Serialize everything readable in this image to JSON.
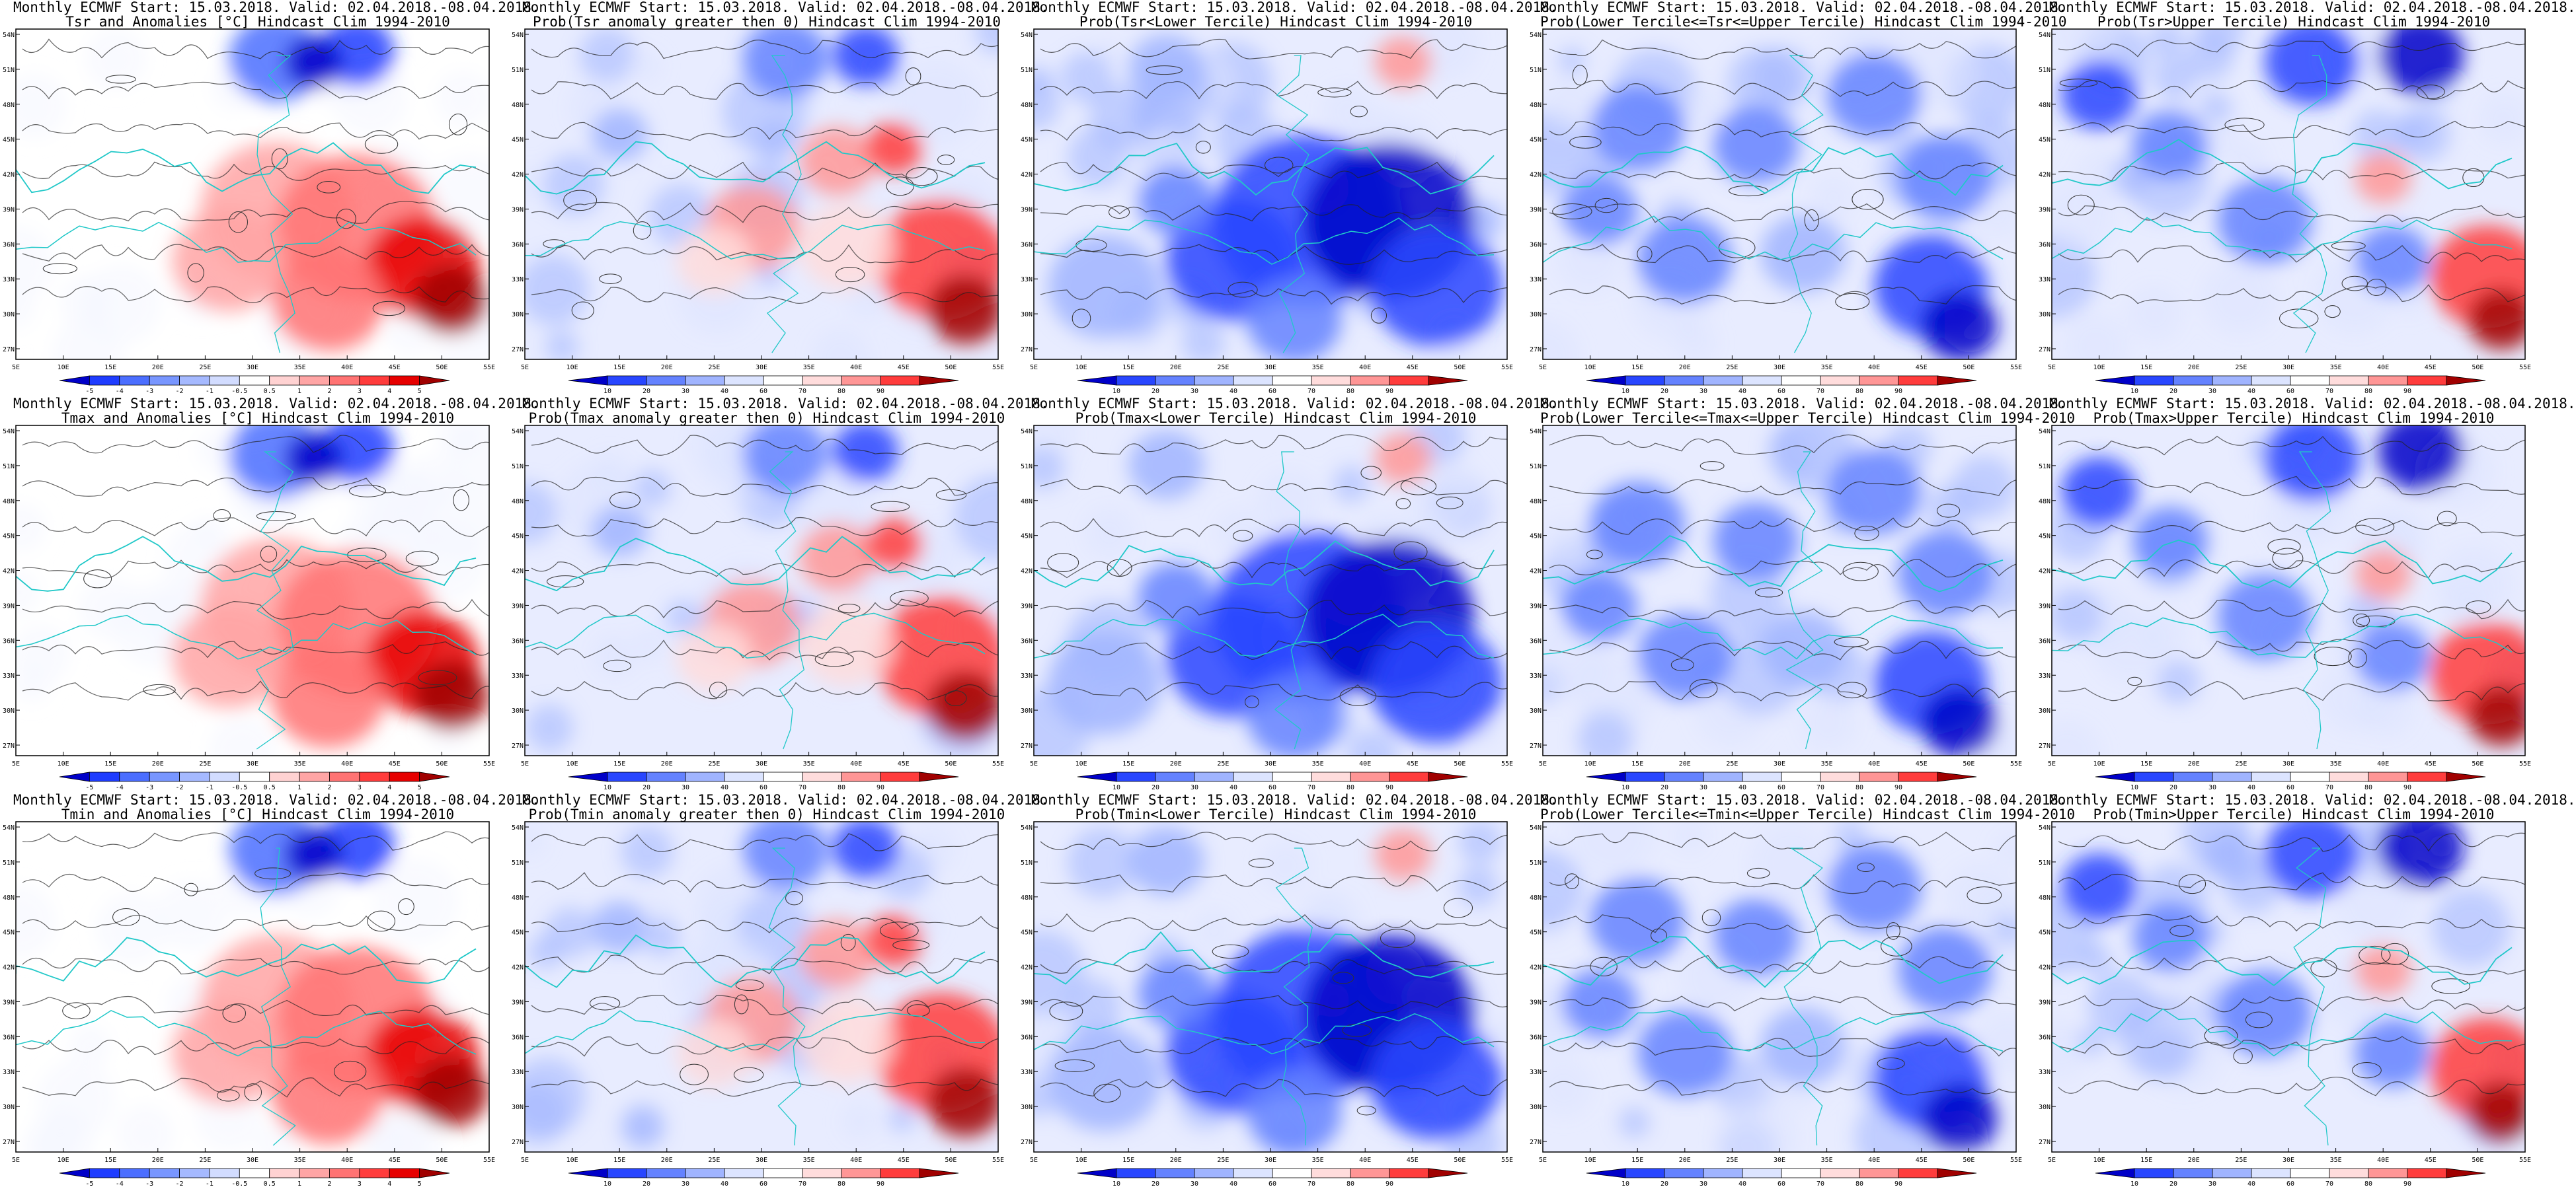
{
  "axes": {
    "lon_ticks": [
      "5E",
      "10E",
      "15E",
      "20E",
      "25E",
      "30E",
      "35E",
      "40E",
      "45E",
      "50E",
      "55E"
    ],
    "lat_ticks": [
      "54N",
      "51N",
      "48N",
      "45N",
      "42N",
      "39N",
      "36N",
      "33N",
      "30N",
      "27N"
    ]
  },
  "colorbars": {
    "anomaly": {
      "labels": [
        "-5",
        "-4",
        "-3",
        "-2",
        "-1",
        "-0.5",
        "0.5",
        "1",
        "2",
        "3",
        "4",
        "5"
      ],
      "colors": [
        "#0000c8",
        "#1e3cff",
        "#4b6eff",
        "#7896ff",
        "#a5b9ff",
        "#d2dcff",
        "#ffffff",
        "#ffd2d2",
        "#ffa5a5",
        "#ff7373",
        "#ff3c3c",
        "#e60000",
        "#a00000"
      ]
    },
    "probability": {
      "labels": [
        "10",
        "20",
        "30",
        "40",
        "60",
        "70",
        "80",
        "90"
      ],
      "colors": [
        "#0000c8",
        "#2846ff",
        "#6482ff",
        "#a0b4ff",
        "#dce4ff",
        "#ffffff",
        "#ffdcdc",
        "#ff9696",
        "#ff3c3c",
        "#a00000"
      ]
    }
  },
  "panels": [
    {
      "title1": "Monthly ECMWF Start: 15.03.2018. Valid: 02.04.2018.-08.04.2018.",
      "title2": "Tsr and Anomalies [°C] Hindcast Clim 1994-2010",
      "scale": "anomaly",
      "pattern": "anom",
      "var": "tsr"
    },
    {
      "title1": "Monthly ECMWF Start: 15.03.2018. Valid: 02.04.2018.-08.04.2018.",
      "title2": "Prob(Tsr anomaly greater then 0) Hindcast Clim 1994-2010",
      "scale": "probability",
      "pattern": "above0",
      "var": "tsr"
    },
    {
      "title1": "Monthly ECMWF Start: 15.03.2018. Valid: 02.04.2018.-08.04.2018.",
      "title2": "Prob(Tsr<Lower Tercile) Hindcast Clim 1994-2010",
      "scale": "probability",
      "pattern": "lower",
      "var": "tsr"
    },
    {
      "title1": "Monthly ECMWF Start: 15.03.2018. Valid: 02.04.2018.-08.04.2018.",
      "title2": "Prob(Lower Tercile<=Tsr<=Upper Tercile) Hindcast Clim 1994-2010",
      "scale": "probability",
      "pattern": "middle",
      "var": "tsr"
    },
    {
      "title1": "Monthly ECMWF Start: 15.03.2018. Valid: 02.04.2018.-08.04.2018.",
      "title2": "Prob(Tsr>Upper Tercile) Hindcast Clim 1994-2010",
      "scale": "probability",
      "pattern": "upper",
      "var": "tsr"
    },
    {
      "title1": "Monthly ECMWF Start: 15.03.2018. Valid: 02.04.2018.-08.04.2018.",
      "title2": "Tmax and Anomalies [°C] Hindcast Clim 1994-2010",
      "scale": "anomaly",
      "pattern": "anom",
      "var": "tmax"
    },
    {
      "title1": "Monthly ECMWF Start: 15.03.2018. Valid: 02.04.2018.-08.04.2018.",
      "title2": "Prob(Tmax anomaly greater then 0) Hindcast Clim 1994-2010",
      "scale": "probability",
      "pattern": "above0",
      "var": "tmax"
    },
    {
      "title1": "Monthly ECMWF Start: 15.03.2018. Valid: 02.04.2018.-08.04.2018.",
      "title2": "Prob(Tmax<Lower Tercile) Hindcast Clim 1994-2010",
      "scale": "probability",
      "pattern": "lower",
      "var": "tmax"
    },
    {
      "title1": "Monthly ECMWF Start: 15.03.2018. Valid: 02.04.2018.-08.04.2018.",
      "title2": "Prob(Lower Tercile<=Tmax<=Upper Tercile) Hindcast Clim 1994-2010",
      "scale": "probability",
      "pattern": "middle",
      "var": "tmax"
    },
    {
      "title1": "Monthly ECMWF Start: 15.03.2018. Valid: 02.04.2018.-08.04.2018.",
      "title2": "Prob(Tmax>Upper Tercile) Hindcast Clim 1994-2010",
      "scale": "probability",
      "pattern": "upper",
      "var": "tmax"
    },
    {
      "title1": "Monthly ECMWF Start: 15.03.2018. Valid: 02.04.2018.-08.04.2018.",
      "title2": "Tmin and Anomalies [°C] Hindcast Clim 1994-2010",
      "scale": "anomaly",
      "pattern": "anom",
      "var": "tmin"
    },
    {
      "title1": "Monthly ECMWF Start: 15.03.2018. Valid: 02.04.2018.-08.04.2018.",
      "title2": "Prob(Tmin anomaly greater then 0) Hindcast Clim 1994-2010",
      "scale": "probability",
      "pattern": "above0",
      "var": "tmin"
    },
    {
      "title1": "Monthly ECMWF Start: 15.03.2018. Valid: 02.04.2018.-08.04.2018.",
      "title2": "Prob(Tmin<Lower Tercile) Hindcast Clim 1994-2010",
      "scale": "probability",
      "pattern": "lower",
      "var": "tmin"
    },
    {
      "title1": "Monthly ECMWF Start: 15.03.2018. Valid: 02.04.2018.-08.04.2018.",
      "title2": "Prob(Lower Tercile<=Tmin<=Upper Tercile) Hindcast Clim 1994-2010",
      "scale": "probability",
      "pattern": "middle",
      "var": "tmin"
    },
    {
      "title1": "Monthly ECMWF Start: 15.03.2018. Valid: 02.04.2018.-08.04.2018.",
      "title2": "Prob(Tmin>Upper Tercile) Hindcast Clim 1994-2010",
      "scale": "probability",
      "pattern": "upper",
      "var": "tmin"
    }
  ]
}
